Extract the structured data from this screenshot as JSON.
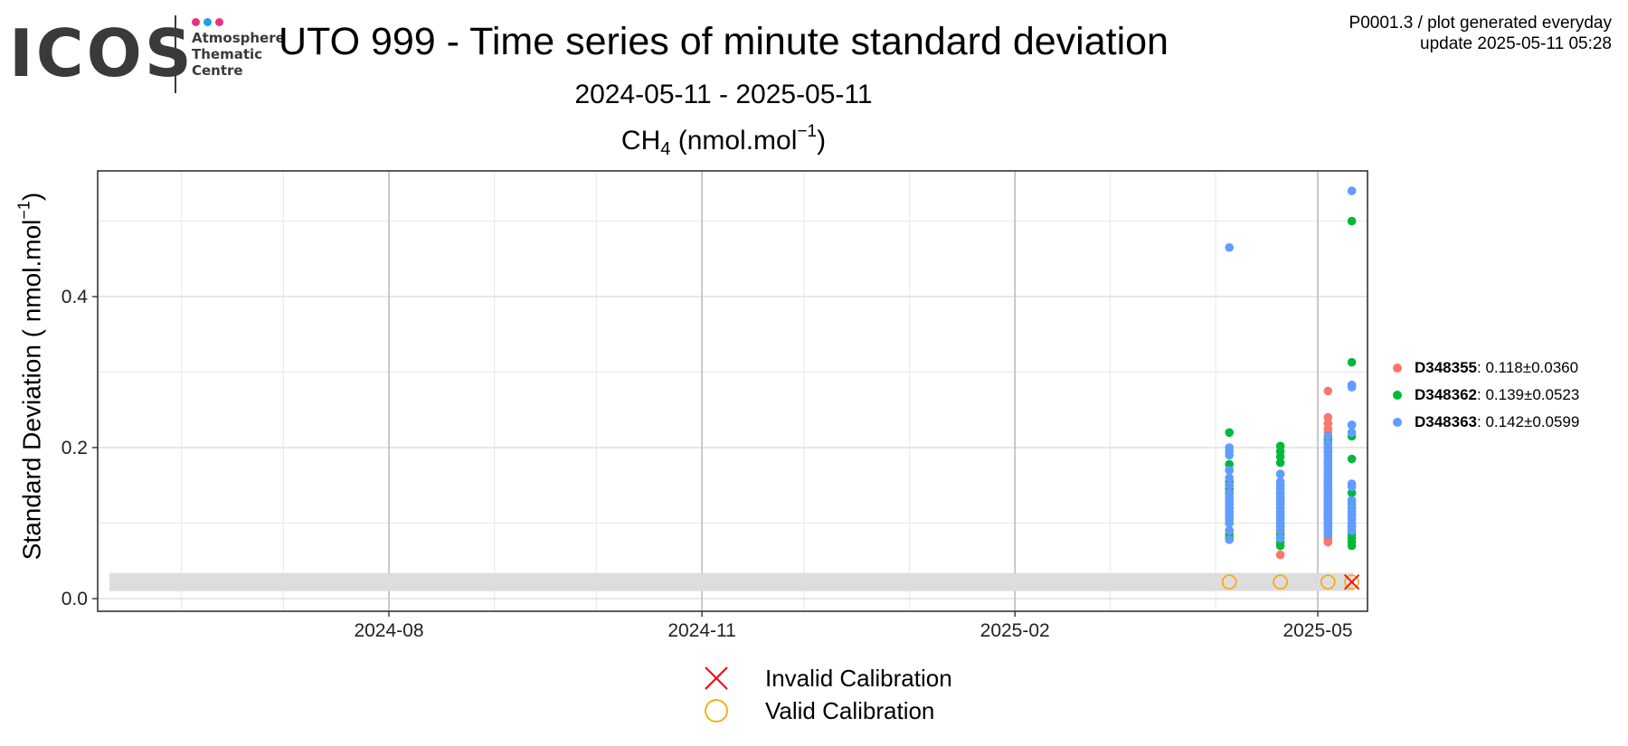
{
  "logo": {
    "word": "ICOS",
    "lines": [
      "Atmosphere",
      "Thematic",
      "Centre"
    ],
    "dot_colors": [
      "#e8357a",
      "#1ba3e0",
      "#e8357a"
    ]
  },
  "header": {
    "title": "UTO 999 - Time series of minute standard deviation",
    "subtitle": "2024-05-11 - 2025-05-11",
    "panel_title_main": "CH",
    "panel_title_sub": "4",
    "panel_title_unit": " (nmol.mol",
    "panel_title_exp": "−1",
    "panel_title_close": ")",
    "meta_line1": "P0001.3 / plot generated everyday",
    "meta_line2": "update  2025-05-11 05:28"
  },
  "chart_data": {
    "type": "scatter",
    "ylabel_main": "Standard Deviation ( nmol.mol",
    "ylabel_exp": "−1",
    "ylabel_close": ")",
    "x_ticks": [
      "2024-08",
      "2024-11",
      "2025-02",
      "2025-05"
    ],
    "x_tick_dates": [
      "2024-08-01",
      "2024-11-01",
      "2025-02-01",
      "2025-05-01"
    ],
    "xlim": [
      "2024-05-11",
      "2025-05-11"
    ],
    "y_ticks": [
      "0.0",
      "0.2",
      "0.4"
    ],
    "y_tick_values": [
      0.0,
      0.2,
      0.4
    ],
    "ylim": [
      -0.015,
      0.57
    ],
    "grid": true,
    "band": {
      "ymin": 0.01,
      "ymax": 0.034,
      "color": "#dddddd"
    },
    "legend_position": "right",
    "series": [
      {
        "name": "D348355",
        "stat": ": 0.118±0.0360",
        "color": "#f8766d",
        "dates": [
          "2025-04-05",
          "2025-04-05",
          "2025-04-05",
          "2025-04-05",
          "2025-04-05",
          "2025-04-05",
          "2025-04-05",
          "2025-04-05",
          "2025-04-05",
          "2025-04-05",
          "2025-04-05",
          "2025-04-05",
          "2025-04-20",
          "2025-04-20",
          "2025-04-20",
          "2025-04-20",
          "2025-04-20",
          "2025-04-20",
          "2025-04-20",
          "2025-04-20",
          "2025-04-20",
          "2025-04-20",
          "2025-04-20",
          "2025-04-20",
          "2025-04-20",
          "2025-05-04",
          "2025-05-04",
          "2025-05-04",
          "2025-05-04",
          "2025-05-04",
          "2025-05-04",
          "2025-05-04",
          "2025-05-04",
          "2025-05-04",
          "2025-05-04",
          "2025-05-04",
          "2025-05-04",
          "2025-05-04",
          "2025-05-04",
          "2025-05-04",
          "2025-05-04",
          "2025-05-04",
          "2025-05-04",
          "2025-05-04",
          "2025-05-04",
          "2025-05-04",
          "2025-05-04",
          "2025-05-04",
          "2025-05-04",
          "2025-05-04",
          "2025-05-04",
          "2025-05-04",
          "2025-05-04",
          "2025-05-04",
          "2025-05-04",
          "2025-05-04",
          "2025-05-04",
          "2025-05-04",
          "2025-05-04",
          "2025-05-04",
          "2025-05-04",
          "2025-05-04",
          "2025-05-04",
          "2025-05-04",
          "2025-05-04",
          "2025-05-04",
          "2025-05-04",
          "2025-05-04",
          "2025-05-04",
          "2025-05-04",
          "2025-05-04",
          "2025-05-04",
          "2025-05-04",
          "2025-05-04",
          "2025-05-04",
          "2025-05-04",
          "2025-05-04",
          "2025-05-04",
          "2025-05-04",
          "2025-05-04",
          "2025-05-04",
          "2025-05-04",
          "2025-05-04",
          "2025-05-04",
          "2025-05-04",
          "2025-05-04",
          "2025-05-04",
          "2025-05-04",
          "2025-05-04",
          "2025-05-04",
          "2025-05-04",
          "2025-05-04",
          "2025-05-04",
          "2025-05-04",
          "2025-05-04",
          "2025-05-04",
          "2025-05-04",
          "2025-05-04",
          "2025-05-04",
          "2025-05-04",
          "2025-05-04",
          "2025-05-04",
          "2025-05-04",
          "2025-05-04",
          "2025-05-04",
          "2025-05-04",
          "2025-05-04",
          "2025-05-04",
          "2025-05-04",
          "2025-05-04",
          "2025-05-04",
          "2025-05-04",
          "2025-05-04",
          "2025-05-04",
          "2025-05-04",
          "2025-05-04",
          "2025-05-04",
          "2025-05-04",
          "2025-05-04",
          "2025-05-04",
          "2025-05-04",
          "2025-05-04",
          "2025-05-04",
          "2025-05-04",
          "2025-05-04",
          "2025-05-04"
        ],
        "values": [
          0.09,
          0.1,
          0.11,
          0.12,
          0.13,
          0.14,
          0.15,
          0.105,
          0.115,
          0.125,
          0.135,
          0.145,
          0.058,
          0.09,
          0.1,
          0.11,
          0.12,
          0.13,
          0.14,
          0.15,
          0.095,
          0.105,
          0.115,
          0.125,
          0.135,
          0.275,
          0.24,
          0.225,
          0.195,
          0.14,
          0.13,
          0.12,
          0.11,
          0.1,
          0.09,
          0.08,
          0.075,
          0.085,
          0.095,
          0.105,
          0.115,
          0.125,
          0.135,
          0.145,
          0.15,
          0.22,
          0.232,
          0.12,
          0.13,
          0.11,
          0.1,
          0.09,
          0.08,
          0.115,
          0.125,
          0.105,
          0.095,
          0.085,
          0.135,
          0.14,
          0.145,
          0.12,
          0.11,
          0.1,
          0.13,
          0.115,
          0.105,
          0.125,
          0.095,
          0.085,
          0.09,
          0.1,
          0.11,
          0.12,
          0.13,
          0.14,
          0.15,
          0.08,
          0.075,
          0.085,
          0.095,
          0.105,
          0.115,
          0.125,
          0.135,
          0.12,
          0.11,
          0.1,
          0.13,
          0.115,
          0.105,
          0.125,
          0.095,
          0.085,
          0.09,
          0.1,
          0.11,
          0.12,
          0.13,
          0.14,
          0.15,
          0.08,
          0.075,
          0.085,
          0.095,
          0.105,
          0.115,
          0.125,
          0.135,
          0.12,
          0.11,
          0.1,
          0.13,
          0.115,
          0.105,
          0.125,
          0.095,
          0.085,
          0.09,
          0.1,
          0.11,
          0.12,
          0.13,
          0.14,
          0.15,
          0.08
        ]
      },
      {
        "name": "D348362",
        "stat": ": 0.139±0.0523",
        "color": "#00ba38",
        "dates": [
          "2025-04-05",
          "2025-04-05",
          "2025-04-05",
          "2025-04-05",
          "2025-04-05",
          "2025-04-05",
          "2025-04-05",
          "2025-04-05",
          "2025-04-05",
          "2025-04-05",
          "2025-04-05",
          "2025-04-05",
          "2025-04-05",
          "2025-04-05",
          "2025-04-20",
          "2025-04-20",
          "2025-04-20",
          "2025-04-20",
          "2025-04-20",
          "2025-04-20",
          "2025-04-20",
          "2025-04-20",
          "2025-04-20",
          "2025-04-20",
          "2025-04-20",
          "2025-04-20",
          "2025-04-20",
          "2025-04-20",
          "2025-04-20",
          "2025-04-20",
          "2025-04-20",
          "2025-05-04",
          "2025-05-04",
          "2025-05-04",
          "2025-05-04",
          "2025-05-04",
          "2025-05-04",
          "2025-05-04",
          "2025-05-04",
          "2025-05-04",
          "2025-05-04",
          "2025-05-04",
          "2025-05-04",
          "2025-05-04",
          "2025-05-04",
          "2025-05-04",
          "2025-05-04",
          "2025-05-04",
          "2025-05-04",
          "2025-05-04",
          "2025-05-04",
          "2025-05-04",
          "2025-05-04",
          "2025-05-04",
          "2025-05-04",
          "2025-05-04",
          "2025-05-04",
          "2025-05-04",
          "2025-05-04",
          "2025-05-04",
          "2025-05-04",
          "2025-05-04",
          "2025-05-04",
          "2025-05-04",
          "2025-05-04",
          "2025-05-11",
          "2025-05-11",
          "2025-05-11",
          "2025-05-11",
          "2025-05-11",
          "2025-05-11",
          "2025-05-11",
          "2025-05-11",
          "2025-05-11",
          "2025-05-11",
          "2025-05-11",
          "2025-05-11",
          "2025-05-11",
          "2025-05-11",
          "2025-05-11",
          "2025-05-11"
        ],
        "values": [
          0.22,
          0.178,
          0.17,
          0.155,
          0.15,
          0.14,
          0.13,
          0.12,
          0.11,
          0.1,
          0.09,
          0.085,
          0.08,
          0.145,
          0.202,
          0.195,
          0.188,
          0.18,
          0.165,
          0.15,
          0.14,
          0.13,
          0.12,
          0.11,
          0.1,
          0.095,
          0.09,
          0.085,
          0.08,
          0.075,
          0.07,
          0.215,
          0.205,
          0.195,
          0.185,
          0.17,
          0.16,
          0.15,
          0.14,
          0.13,
          0.12,
          0.11,
          0.1,
          0.09,
          0.09,
          0.145,
          0.135,
          0.125,
          0.115,
          0.105,
          0.155,
          0.165,
          0.175,
          0.21,
          0.2,
          0.19,
          0.18,
          0.16,
          0.15,
          0.14,
          0.13,
          0.12,
          0.11,
          0.1,
          0.095,
          0.5,
          0.313,
          0.23,
          0.215,
          0.185,
          0.14,
          0.13,
          0.12,
          0.11,
          0.1,
          0.095,
          0.09,
          0.085,
          0.08,
          0.075,
          0.07
        ]
      },
      {
        "name": "D348363",
        "stat": ": 0.142±0.0599",
        "color": "#619cff",
        "dates": [
          "2025-04-05",
          "2025-04-05",
          "2025-04-05",
          "2025-04-05",
          "2025-04-05",
          "2025-04-05",
          "2025-04-05",
          "2025-04-05",
          "2025-04-05",
          "2025-04-05",
          "2025-04-05",
          "2025-04-05",
          "2025-04-05",
          "2025-04-05",
          "2025-04-05",
          "2025-04-05",
          "2025-04-05",
          "2025-04-05",
          "2025-04-20",
          "2025-04-20",
          "2025-04-20",
          "2025-04-20",
          "2025-04-20",
          "2025-04-20",
          "2025-04-20",
          "2025-04-20",
          "2025-04-20",
          "2025-04-20",
          "2025-04-20",
          "2025-04-20",
          "2025-04-20",
          "2025-04-20",
          "2025-04-20",
          "2025-04-20",
          "2025-05-04",
          "2025-05-04",
          "2025-05-04",
          "2025-05-04",
          "2025-05-04",
          "2025-05-04",
          "2025-05-04",
          "2025-05-04",
          "2025-05-04",
          "2025-05-04",
          "2025-05-04",
          "2025-05-04",
          "2025-05-04",
          "2025-05-04",
          "2025-05-04",
          "2025-05-04",
          "2025-05-04",
          "2025-05-04",
          "2025-05-04",
          "2025-05-04",
          "2025-05-04",
          "2025-05-04",
          "2025-05-04",
          "2025-05-04",
          "2025-05-04",
          "2025-05-04",
          "2025-05-04",
          "2025-05-04",
          "2025-05-04",
          "2025-05-04",
          "2025-05-04",
          "2025-05-04",
          "2025-05-04",
          "2025-05-04",
          "2025-05-04",
          "2025-05-04",
          "2025-05-04",
          "2025-05-04",
          "2025-05-04",
          "2025-05-04",
          "2025-05-04",
          "2025-05-04",
          "2025-05-04",
          "2025-05-04",
          "2025-05-04",
          "2025-05-04",
          "2025-05-04",
          "2025-05-04",
          "2025-05-04",
          "2025-05-04",
          "2025-05-04",
          "2025-05-04",
          "2025-05-04",
          "2025-05-04",
          "2025-05-04",
          "2025-05-04",
          "2025-05-04",
          "2025-05-04",
          "2025-05-04",
          "2025-05-04",
          "2025-05-04",
          "2025-05-04",
          "2025-05-04",
          "2025-05-04",
          "2025-05-04",
          "2025-05-04",
          "2025-05-04",
          "2025-05-04",
          "2025-05-04",
          "2025-05-04",
          "2025-05-04",
          "2025-05-04",
          "2025-05-04",
          "2025-05-04",
          "2025-05-04",
          "2025-05-04",
          "2025-05-04",
          "2025-05-04",
          "2025-05-04",
          "2025-05-04",
          "2025-05-04",
          "2025-05-04",
          "2025-05-04",
          "2025-05-04",
          "2025-05-04",
          "2025-05-04",
          "2025-05-04",
          "2025-05-04",
          "2025-05-04",
          "2025-05-04",
          "2025-05-04",
          "2025-05-04",
          "2025-05-04",
          "2025-05-04",
          "2025-05-04",
          "2025-05-04",
          "2025-05-04",
          "2025-05-04"
        ],
        "values": [
          0.465,
          0.2,
          0.195,
          0.19,
          0.17,
          0.16,
          0.15,
          0.14,
          0.135,
          0.13,
          0.125,
          0.12,
          0.115,
          0.11,
          0.105,
          0.1,
          0.09,
          0.078,
          0.165,
          0.155,
          0.15,
          0.145,
          0.14,
          0.135,
          0.13,
          0.125,
          0.12,
          0.115,
          0.11,
          0.105,
          0.1,
          0.095,
          0.09,
          0.08,
          0.215,
          0.205,
          0.2,
          0.19,
          0.18,
          0.17,
          0.16,
          0.155,
          0.15,
          0.145,
          0.14,
          0.135,
          0.13,
          0.125,
          0.12,
          0.115,
          0.11,
          0.105,
          0.1,
          0.095,
          0.16,
          0.15,
          0.14,
          0.13,
          0.12,
          0.11,
          0.1,
          0.095,
          0.09,
          0.085,
          0.175,
          0.165,
          0.155,
          0.145,
          0.135,
          0.125,
          0.115,
          0.105,
          0.195,
          0.185,
          0.15,
          0.14,
          0.13,
          0.12,
          0.11,
          0.1,
          0.165,
          0.155,
          0.145,
          0.135,
          0.125,
          0.115,
          0.105,
          0.095,
          0.17,
          0.16,
          0.15,
          0.14,
          0.13,
          0.12,
          0.11,
          0.1,
          0.18,
          0.17,
          0.16,
          0.15,
          0.14,
          0.13,
          0.12,
          0.11,
          0.1,
          0.145,
          0.135,
          0.125,
          0.115,
          0.105,
          0.155,
          0.145,
          0.135,
          0.125,
          0.115,
          0.105,
          0.095,
          0.165,
          0.155,
          0.145,
          0.135,
          0.125,
          0.115,
          0.105,
          0.095,
          0.16,
          0.15,
          0.14,
          0.13,
          0.12,
          0.11,
          0.1
        ],
        "extra_2025_05_11": [
          0.54,
          0.283,
          0.28,
          0.23,
          0.22,
          0.152,
          0.148,
          0.13,
          0.125,
          0.12,
          0.115,
          0.11,
          0.105,
          0.1,
          0.095,
          0.09
        ]
      }
    ],
    "calibration_markers": [
      {
        "type": "valid",
        "date": "2025-04-05",
        "value": 0.022
      },
      {
        "type": "valid",
        "date": "2025-04-20",
        "value": 0.022
      },
      {
        "type": "valid",
        "date": "2025-05-04",
        "value": 0.022
      },
      {
        "type": "valid",
        "date": "2025-05-11",
        "value": 0.022
      },
      {
        "type": "invalid",
        "date": "2025-05-11",
        "value": 0.022
      }
    ],
    "calibration_legend": [
      {
        "type": "invalid",
        "label": "Invalid Calibration",
        "color": "#ff0000"
      },
      {
        "type": "valid",
        "label": "Valid Calibration",
        "color": "#ffa500"
      }
    ]
  }
}
